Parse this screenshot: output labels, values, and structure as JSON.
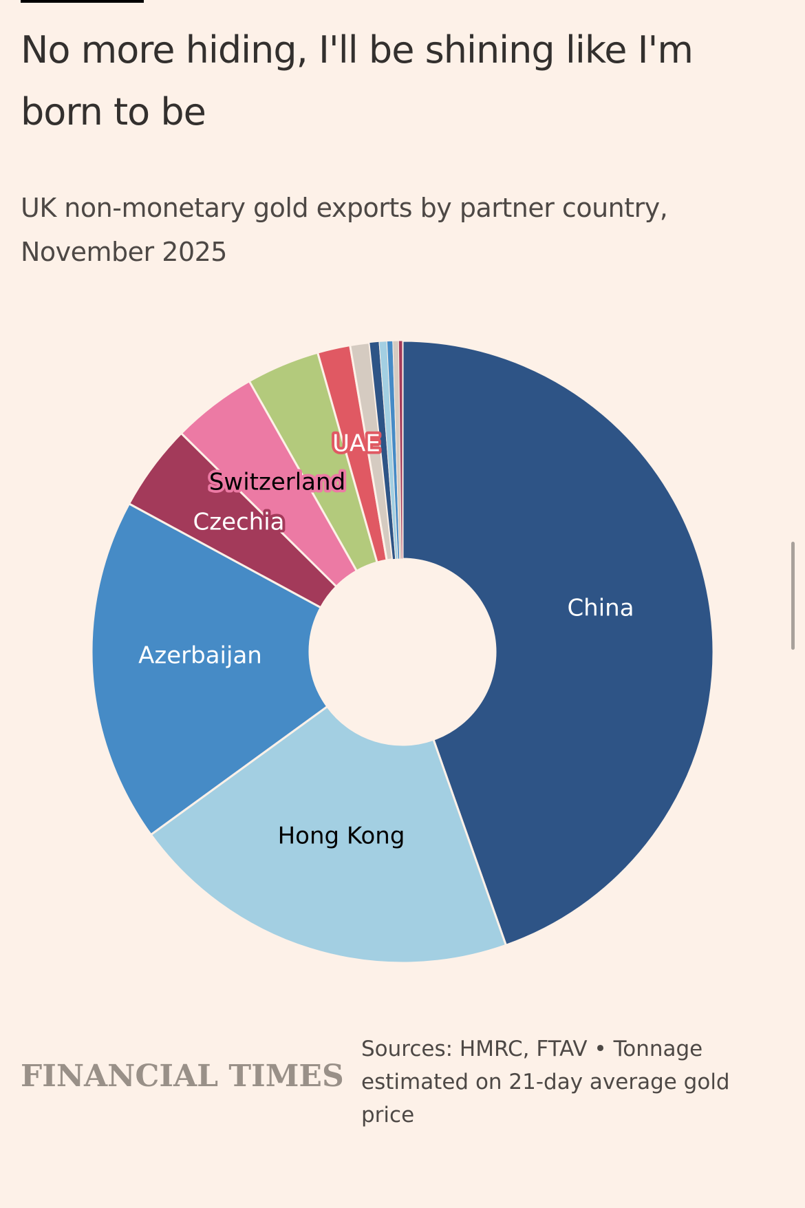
{
  "title": "No more hiding, I'll be shining like I'm born to be",
  "subtitle": "UK non-monetary gold exports by partner country, November 2025",
  "chart_data": {
    "type": "pie",
    "subtype": "donut",
    "title": "UK non-monetary gold exports by partner country, November 2025",
    "unit": "share of total (%)",
    "slices": [
      {
        "label": "China",
        "value": 44.6,
        "color": "#2e5486",
        "label_color": "#ffffff",
        "label_bg": ""
      },
      {
        "label": "Hong Kong",
        "value": 20.4,
        "color": "#a3cfe2",
        "label_color": "#000000",
        "label_bg": ""
      },
      {
        "label": "Azerbaijan",
        "value": 17.9,
        "color": "#468bc6",
        "label_color": "#ffffff",
        "label_bg": ""
      },
      {
        "label": "Czechia",
        "value": 4.5,
        "color": "#a33a5a",
        "label_color": "#ffffff",
        "label_bg": "#a33a5a"
      },
      {
        "label": "Switzerland",
        "value": 4.4,
        "color": "#ec7aa4",
        "label_color": "#000000",
        "label_bg": "#ec7aa4"
      },
      {
        "label": "",
        "value": 3.8,
        "color": "#b3ca7c"
      },
      {
        "label": "UAE",
        "value": 1.7,
        "color": "#e05963",
        "label_color": "#ffffff",
        "label_bg": "#e05963"
      },
      {
        "label": "",
        "value": 1.0,
        "color": "#d5cbc1"
      },
      {
        "label": "",
        "value": 0.5,
        "color": "#2e5486"
      },
      {
        "label": "",
        "value": 0.4,
        "color": "#a3cfe2"
      },
      {
        "label": "",
        "value": 0.3,
        "color": "#468bc6"
      },
      {
        "label": "",
        "value": 0.3,
        "color": "#d5cbc1"
      },
      {
        "label": "",
        "value": 0.2,
        "color": "#a33a5a"
      }
    ]
  },
  "footer": {
    "logo": "FINANCIAL TIMES",
    "source": "Sources: HMRC, FTAV • Tonnage estimated on 21-day average gold price"
  }
}
